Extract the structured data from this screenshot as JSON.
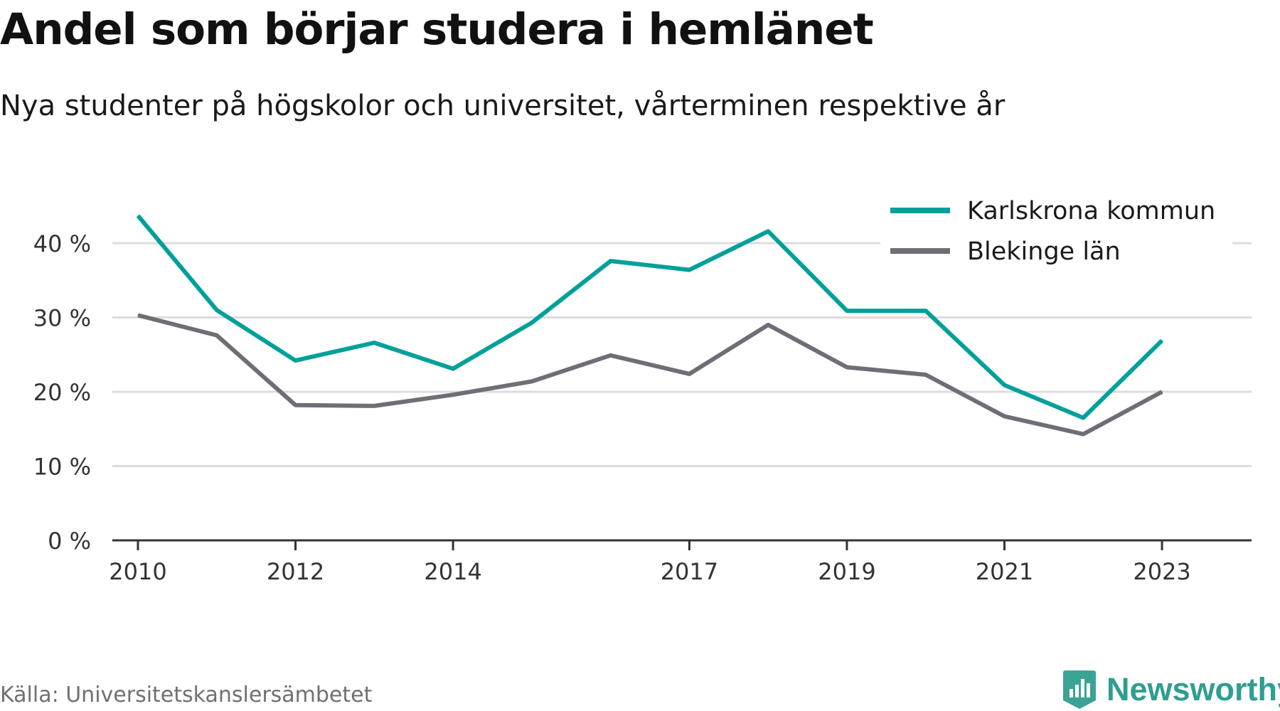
{
  "title": "Andel som börjar studera i hemlänet",
  "subtitle": "Nya studenter på högskolor och universitet, vårterminen respektive år",
  "source": "Källa: Universitetskanslersämbetet",
  "brand": {
    "name": "Newsworthy",
    "icon": "newsworthy-logo-icon",
    "color": "#3aa395"
  },
  "chart_data": {
    "type": "line",
    "title": "Andel som börjar studera i hemlänet",
    "subtitle": "Nya studenter på högskolor och universitet, vårterminen respektive år",
    "xlabel": "",
    "ylabel": "",
    "x": [
      2010,
      2011,
      2012,
      2013,
      2014,
      2015,
      2016,
      2017,
      2018,
      2019,
      2020,
      2021,
      2022,
      2023
    ],
    "x_ticks": [
      2010,
      2012,
      2014,
      2017,
      2019,
      2021,
      2023
    ],
    "x_tick_labels": [
      "2010",
      "2012",
      "2014",
      "2017",
      "2019",
      "2021",
      "2023"
    ],
    "ylim": [
      0,
      45
    ],
    "y_ticks": [
      0,
      10,
      20,
      30,
      40
    ],
    "y_tick_labels": [
      "0 %",
      "10 %",
      "20 %",
      "30 %",
      "40 %"
    ],
    "grid": true,
    "legend_position": "top-right",
    "series": [
      {
        "name": "Karlskrona kommun",
        "color": "#00a09a",
        "values": [
          43.7,
          31.0,
          24.2,
          26.6,
          23.1,
          29.3,
          37.6,
          36.4,
          41.6,
          30.9,
          30.9,
          20.9,
          16.5,
          26.9
        ]
      },
      {
        "name": "Blekinge län",
        "color": "#6e6e76",
        "values": [
          30.3,
          27.6,
          18.2,
          18.1,
          19.6,
          21.4,
          24.9,
          22.4,
          29.0,
          23.3,
          22.3,
          16.7,
          14.3,
          20.0
        ]
      }
    ]
  }
}
